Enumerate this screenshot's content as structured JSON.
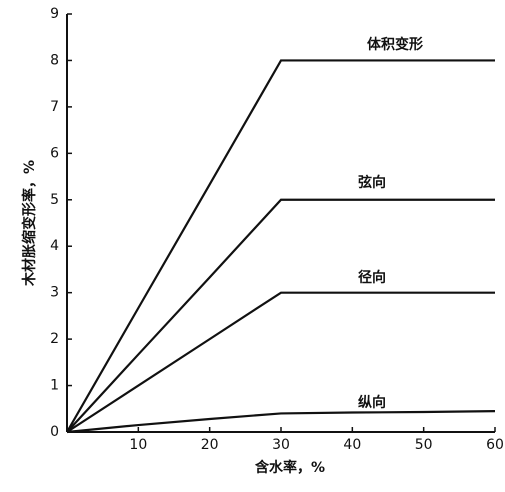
{
  "chart_data": {
    "type": "line",
    "x_label": "含水率，%",
    "y_label": "木材胀缩变形率，%",
    "x": [
      0,
      10,
      20,
      30,
      40,
      50,
      60
    ],
    "series": [
      {
        "name": "体积变形",
        "color": "#111111",
        "values": [
          0,
          2.67,
          5.33,
          8,
          8,
          8,
          8
        ]
      },
      {
        "name": "弦向",
        "color": "#111111",
        "values": [
          0,
          1.67,
          3.33,
          5,
          5,
          5,
          5
        ]
      },
      {
        "name": "径向",
        "color": "#111111",
        "values": [
          0,
          1,
          2,
          3,
          3,
          3,
          3
        ]
      },
      {
        "name": "纵向",
        "color": "#111111",
        "values": [
          0,
          0.15,
          0.28,
          0.4,
          0.42,
          0.43,
          0.45
        ]
      }
    ],
    "xlim": [
      0,
      60
    ],
    "xticks": [
      10,
      20,
      30,
      40,
      50,
      60
    ],
    "ylim": [
      0,
      9
    ],
    "yticks": [
      0,
      1,
      2,
      3,
      4,
      5,
      6,
      7,
      8,
      9
    ],
    "grid": false
  }
}
